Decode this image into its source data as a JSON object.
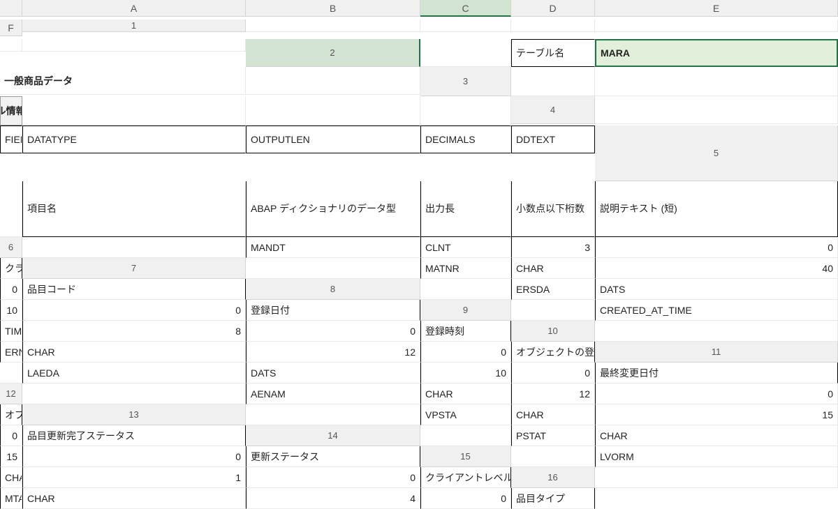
{
  "columns": [
    "A",
    "B",
    "C",
    "D",
    "E",
    "F"
  ],
  "selected": {
    "col": "C",
    "row": "2"
  },
  "header": {
    "label_b2": "テーブル名",
    "value_c2": "MARA",
    "desc_d2": "一般商品データ",
    "button_c3": "テーブル情報の取得"
  },
  "table_headers": {
    "b4": "FIELDNAME",
    "c4": "DATATYPE",
    "d4": "OUTPUTLEN",
    "e4": "DECIMALS",
    "f4": "DDTEXT",
    "b5": "項目名",
    "c5": "ABAP ディクショナリのデータ型",
    "d5": "出力長",
    "e5": "小数点以下桁数",
    "f5": "説明テキスト (短)"
  },
  "rows": [
    {
      "r": "6",
      "fieldname": "MANDT",
      "datatype": "CLNT",
      "outputlen": "3",
      "decimals": "0",
      "ddtext": "クライアント"
    },
    {
      "r": "7",
      "fieldname": "MATNR",
      "datatype": "CHAR",
      "outputlen": "40",
      "decimals": "0",
      "ddtext": "品目コード"
    },
    {
      "r": "8",
      "fieldname": "ERSDA",
      "datatype": "DATS",
      "outputlen": "10",
      "decimals": "0",
      "ddtext": "登録日付"
    },
    {
      "r": "9",
      "fieldname": "CREATED_AT_TIME",
      "datatype": "TIMS",
      "outputlen": "8",
      "decimals": "0",
      "ddtext": "登録時刻"
    },
    {
      "r": "10",
      "fieldname": "ERNAM",
      "datatype": "CHAR",
      "outputlen": "12",
      "decimals": "0",
      "ddtext": "オブジェクトの登録担当者の名前"
    },
    {
      "r": "11",
      "fieldname": "LAEDA",
      "datatype": "DATS",
      "outputlen": "10",
      "decimals": "0",
      "ddtext": "最終変更日付"
    },
    {
      "r": "12",
      "fieldname": "AENAM",
      "datatype": "CHAR",
      "outputlen": "12",
      "decimals": "0",
      "ddtext": "オブジェクト変更者名"
    },
    {
      "r": "13",
      "fieldname": "VPSTA",
      "datatype": "CHAR",
      "outputlen": "15",
      "decimals": "0",
      "ddtext": "品目更新完了ステータス"
    },
    {
      "r": "14",
      "fieldname": "PSTAT",
      "datatype": "CHAR",
      "outputlen": "15",
      "decimals": "0",
      "ddtext": "更新ステータス"
    },
    {
      "r": "15",
      "fieldname": "LVORM",
      "datatype": "CHAR",
      "outputlen": "1",
      "decimals": "0",
      "ddtext": "クライアントレベルでの品目削除フラ"
    },
    {
      "r": "16",
      "fieldname": "MTART",
      "datatype": "CHAR",
      "outputlen": "4",
      "decimals": "0",
      "ddtext": "品目タイプ"
    }
  ]
}
